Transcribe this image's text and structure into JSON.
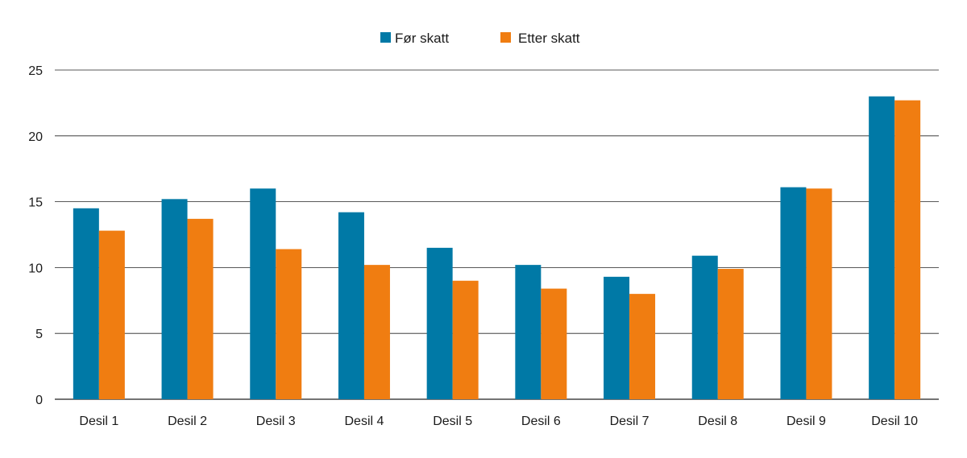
{
  "chart_data": {
    "type": "bar",
    "categories": [
      "Desil 1",
      "Desil 2",
      "Desil 3",
      "Desil 4",
      "Desil 5",
      "Desil 6",
      "Desil 7",
      "Desil 8",
      "Desil 9",
      "Desil 10"
    ],
    "series": [
      {
        "name": "Før skatt",
        "color": "#0079a6",
        "values": [
          14.5,
          15.2,
          16.0,
          14.2,
          11.5,
          10.2,
          9.3,
          10.9,
          16.1,
          23.0
        ]
      },
      {
        "name": "Etter skatt",
        "color": "#f07d11",
        "values": [
          12.8,
          13.7,
          11.4,
          10.2,
          9.0,
          8.4,
          8.0,
          9.9,
          16.0,
          22.7
        ]
      }
    ],
    "yticks": [
      0,
      5,
      10,
      15,
      20,
      25
    ],
    "ylim": [
      0,
      25
    ],
    "grid": true,
    "legend": "top-center",
    "title": "",
    "xlabel": "",
    "ylabel": ""
  }
}
